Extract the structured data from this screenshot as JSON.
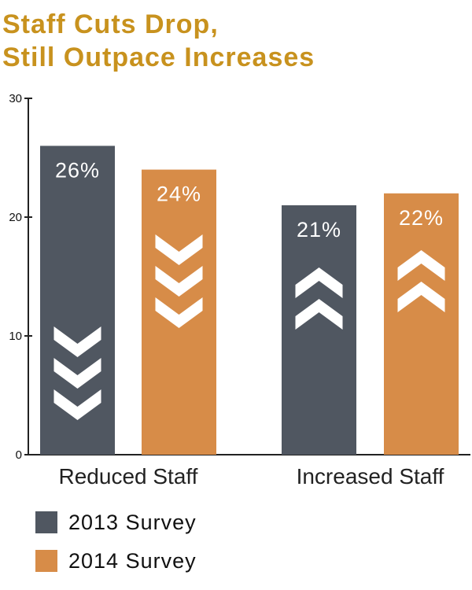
{
  "colors": {
    "series_2013": "#505761",
    "series_2014": "#d78c48",
    "title": "#c8921e",
    "axis": "#222222",
    "arrow": "#ffffff"
  },
  "chart_data": {
    "type": "bar",
    "title_lines": [
      "Staff Cuts Drop,",
      "Still Outpace Increases"
    ],
    "categories": [
      "Reduced Staff",
      "Increased Staff"
    ],
    "series": [
      {
        "name": "2013 Survey",
        "values": [
          26,
          21
        ],
        "labels": [
          "26%",
          "21%"
        ],
        "arrow_icons": [
          "chevron-down-icon",
          "chevron-up-icon"
        ]
      },
      {
        "name": "2014 Survey",
        "values": [
          24,
          22
        ],
        "labels": [
          "24%",
          "22%"
        ],
        "arrow_icons": [
          "chevron-down-icon",
          "chevron-up-icon"
        ]
      }
    ],
    "ylim": [
      0,
      30
    ],
    "y_ticks": [
      0,
      10,
      20,
      30
    ],
    "y_tick_labels": [
      "0",
      "10",
      "20",
      "30"
    ],
    "grid": false,
    "legend_position": "bottom-left"
  }
}
